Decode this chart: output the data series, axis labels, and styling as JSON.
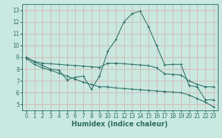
{
  "line1_x": [
    0,
    1,
    2,
    3,
    4,
    5,
    6,
    7,
    8,
    9,
    10,
    11,
    12,
    13,
    14,
    15,
    16,
    17,
    18,
    19,
    20,
    21,
    22,
    23
  ],
  "line1_y": [
    9.0,
    8.6,
    8.3,
    8.0,
    7.9,
    7.1,
    7.3,
    7.4,
    6.3,
    7.4,
    9.5,
    10.5,
    12.0,
    12.7,
    12.9,
    11.6,
    10.0,
    8.35,
    8.4,
    8.4,
    6.6,
    6.5,
    5.4,
    5.4
  ],
  "line2_x": [
    0,
    1,
    2,
    3,
    4,
    5,
    6,
    7,
    8,
    9,
    10,
    11,
    12,
    13,
    14,
    15,
    16,
    17,
    18,
    19,
    20,
    21,
    22,
    23
  ],
  "line2_y": [
    9.0,
    8.65,
    8.5,
    8.45,
    8.4,
    8.35,
    8.3,
    8.25,
    8.2,
    8.15,
    8.5,
    8.5,
    8.45,
    8.4,
    8.35,
    8.3,
    8.1,
    7.6,
    7.55,
    7.5,
    7.0,
    6.7,
    6.5,
    6.5
  ],
  "line3_x": [
    0,
    1,
    2,
    3,
    4,
    5,
    6,
    7,
    8,
    9,
    10,
    11,
    12,
    13,
    14,
    15,
    16,
    17,
    18,
    19,
    20,
    21,
    22,
    23
  ],
  "line3_y": [
    8.9,
    8.4,
    8.1,
    7.9,
    7.65,
    7.4,
    7.15,
    6.9,
    6.7,
    6.5,
    6.5,
    6.4,
    6.35,
    6.3,
    6.25,
    6.2,
    6.15,
    6.1,
    6.05,
    6.0,
    5.8,
    5.5,
    5.2,
    4.8
  ],
  "line_color": "#2d6e63",
  "bg_color": "#c8e8e0",
  "grid_color": "#b0d8d0",
  "xlabel": "Humidex (Indice chaleur)",
  "ylim": [
    4.5,
    13.5
  ],
  "xlim": [
    -0.5,
    23.5
  ],
  "yticks": [
    5,
    6,
    7,
    8,
    9,
    10,
    11,
    12,
    13
  ],
  "xticks": [
    0,
    1,
    2,
    3,
    4,
    5,
    6,
    7,
    8,
    9,
    10,
    11,
    12,
    13,
    14,
    15,
    16,
    17,
    18,
    19,
    20,
    21,
    22,
    23
  ],
  "tick_label_fontsize": 5.5,
  "xlabel_fontsize": 7.0,
  "marker_size": 3.0,
  "line_width": 0.8
}
